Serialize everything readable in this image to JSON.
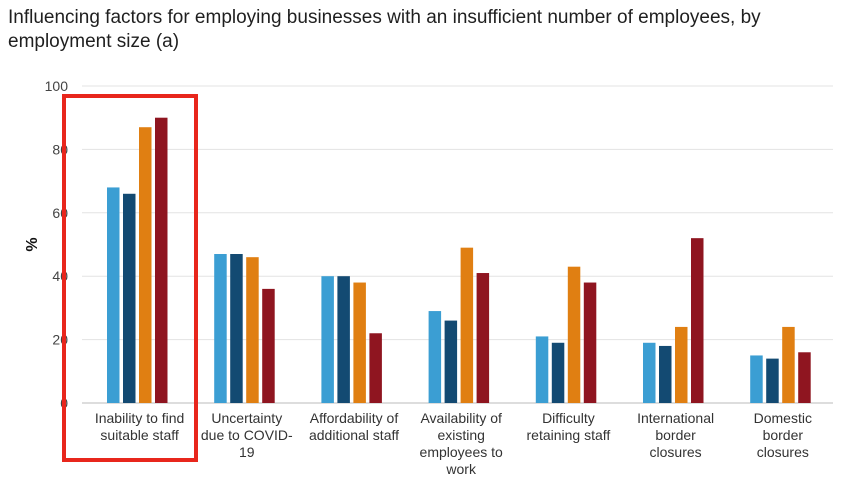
{
  "header": {
    "title": "Influencing factors for employing businesses with an insufficient number of employees, by employment size (a)"
  },
  "colors": {
    "series": [
      "#3b9ed3",
      "#134a72",
      "#e07f12",
      "#8f1520"
    ],
    "highlight": "#e8261c",
    "grid": "#e3e3e3",
    "axis": "#bbbbbb"
  },
  "chart_data": {
    "type": "bar",
    "title": "Influencing factors for employing businesses with an insufficient number of employees, by employment size (a)",
    "ylabel": "%",
    "xlabel": "",
    "ylim": [
      0,
      100
    ],
    "yticks": [
      0,
      20,
      40,
      60,
      80,
      100
    ],
    "grid": true,
    "categories": [
      [
        "Inability to find",
        "suitable staff"
      ],
      [
        "Uncertainty",
        "due to COVID-",
        "19"
      ],
      [
        "Affordability of",
        "additional staff"
      ],
      [
        "Availability of",
        "existing",
        "employees to",
        "work"
      ],
      [
        "Difficulty",
        "retaining staff"
      ],
      [
        "International",
        "border",
        "closures"
      ],
      [
        "Domestic",
        "border",
        "closures"
      ]
    ],
    "series": [
      {
        "values": [
          68,
          47,
          40,
          29,
          21,
          19,
          15
        ]
      },
      {
        "values": [
          66,
          47,
          40,
          26,
          19,
          18,
          14
        ]
      },
      {
        "values": [
          87,
          46,
          38,
          49,
          43,
          24,
          24
        ]
      },
      {
        "values": [
          90,
          36,
          22,
          41,
          38,
          52,
          16
        ]
      }
    ],
    "highlighted_category_index": 0
  }
}
